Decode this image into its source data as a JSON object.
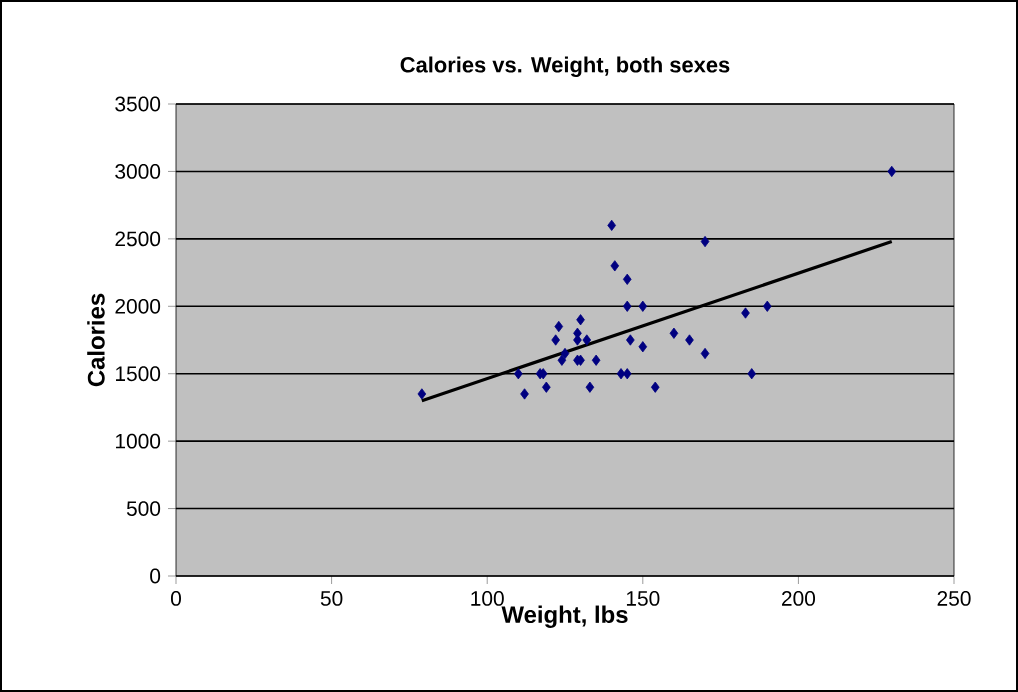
{
  "chart_data": {
    "type": "scatter",
    "title": "Calories vs. Weight, both sexes",
    "xlabel": "Weight, lbs",
    "ylabel": "Calories",
    "xlim": [
      0,
      250
    ],
    "xticks": [
      0,
      50,
      100,
      150,
      200,
      250
    ],
    "ylim": [
      0,
      3500
    ],
    "yticks": [
      0,
      500,
      1000,
      1500,
      2000,
      2500,
      3000,
      3500
    ],
    "grid": "y",
    "series": [
      {
        "marker": "diamond",
        "color": "#000080",
        "x": [
          79,
          110,
          112,
          117,
          118,
          119,
          122,
          123,
          124,
          125,
          129,
          129,
          130,
          130,
          129,
          132,
          133,
          135,
          140,
          141,
          145,
          145,
          146,
          143,
          145,
          150,
          150,
          154,
          160,
          165,
          170,
          170,
          183,
          185,
          190,
          230
        ],
        "values": [
          1350,
          1500,
          1350,
          1500,
          1500,
          1400,
          1750,
          1850,
          1600,
          1650,
          1800,
          1600,
          1900,
          1600,
          1750,
          1750,
          1400,
          1600,
          2600,
          2300,
          2200,
          2000,
          1750,
          1500,
          1500,
          2000,
          1700,
          1400,
          1800,
          1750,
          1650,
          2480,
          1950,
          1500,
          2000,
          3000
        ]
      },
      {
        "type": "line",
        "marker": "none",
        "line_style": "solid",
        "color": "#000000",
        "x": [
          79,
          230
        ],
        "values": [
          1300,
          2480
        ]
      }
    ]
  }
}
